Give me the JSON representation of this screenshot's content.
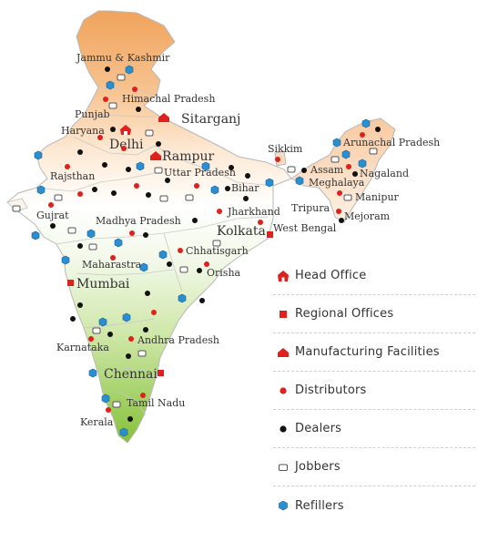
{
  "states": [
    "Jammu & Kashmir",
    "Himachal Pradesh",
    "Punjab",
    "Haryana",
    "Uttar Pradesh",
    "Rajsthan",
    "Gujrat",
    "Madhya Pradesh",
    "Bihar",
    "Jharkhand",
    "West Bengal",
    "Chhatisgarh",
    "Maharastra",
    "Orisha",
    "Andhra Pradesh",
    "Karnataka",
    "Tamil Nadu",
    "Kerala",
    "Sikkim",
    "Arunachal Pradesh",
    "Assam",
    "Nagaland",
    "Meghalaya",
    "Manipur",
    "Tripura",
    "Mejoram"
  ],
  "cities": [
    "Delhi",
    "Sitarganj",
    "Rampur",
    "Kolkata",
    "Mumbai",
    "Chennai"
  ],
  "legend": {
    "head_office": "Head Office",
    "regional_offices": "Regional Offices",
    "manufacturing": "Manufacturing Facilities",
    "distributors": "Distributors",
    "dealers": "Dealers",
    "jobbers": "Jobbers",
    "refillers": "Refillers"
  },
  "colors": {
    "red": "#e0201d",
    "refiller": "#2a8fd1",
    "north": "#f2a765",
    "south": "#8cc63e"
  }
}
